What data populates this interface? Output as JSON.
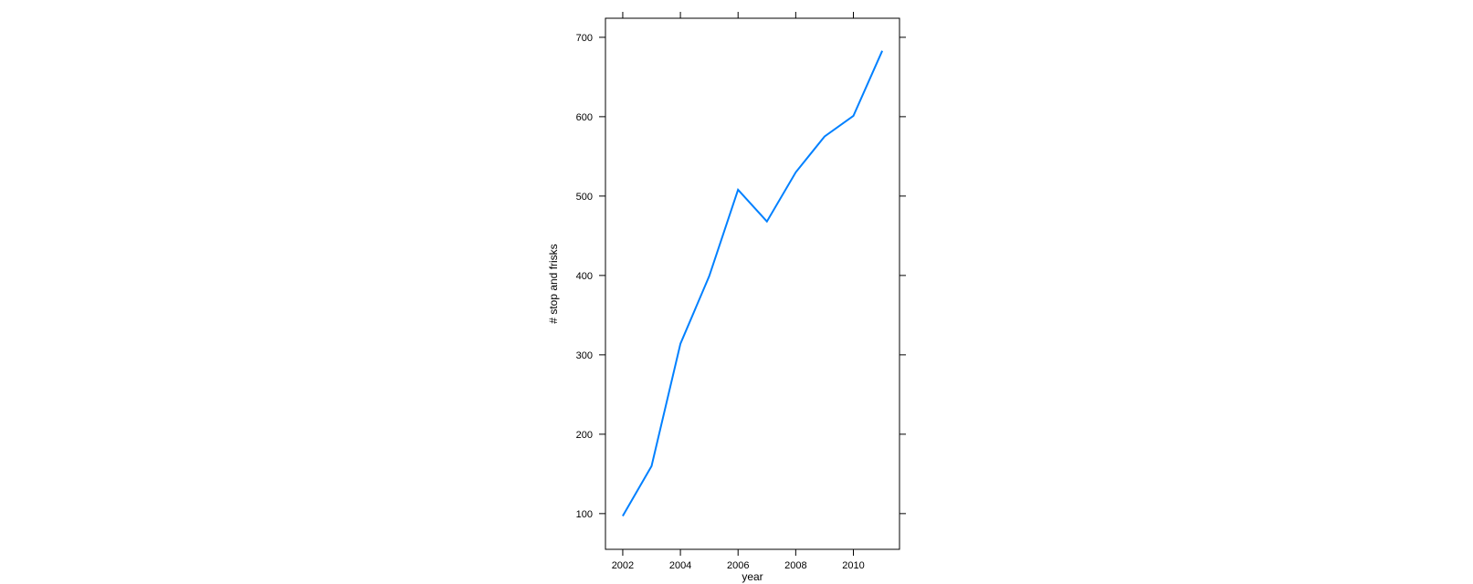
{
  "chart_data": {
    "type": "line",
    "title": "",
    "xlabel": "year",
    "ylabel": "# stop and frisks",
    "x": [
      2002,
      2003,
      2004,
      2005,
      2006,
      2007,
      2008,
      2009,
      2010,
      2011
    ],
    "series": [
      {
        "values": [
          97,
          160,
          314,
          399,
          508,
          468,
          530,
          575,
          601,
          683
        ],
        "color": "#0080ff"
      }
    ],
    "xticks": [
      2002,
      2004,
      2006,
      2008,
      2010
    ],
    "yticks": [
      100,
      200,
      300,
      400,
      500,
      600,
      700
    ],
    "xlim": [
      2001.4,
      2011.6
    ],
    "ylim": [
      55,
      724
    ],
    "grid": false,
    "legend": "none"
  }
}
